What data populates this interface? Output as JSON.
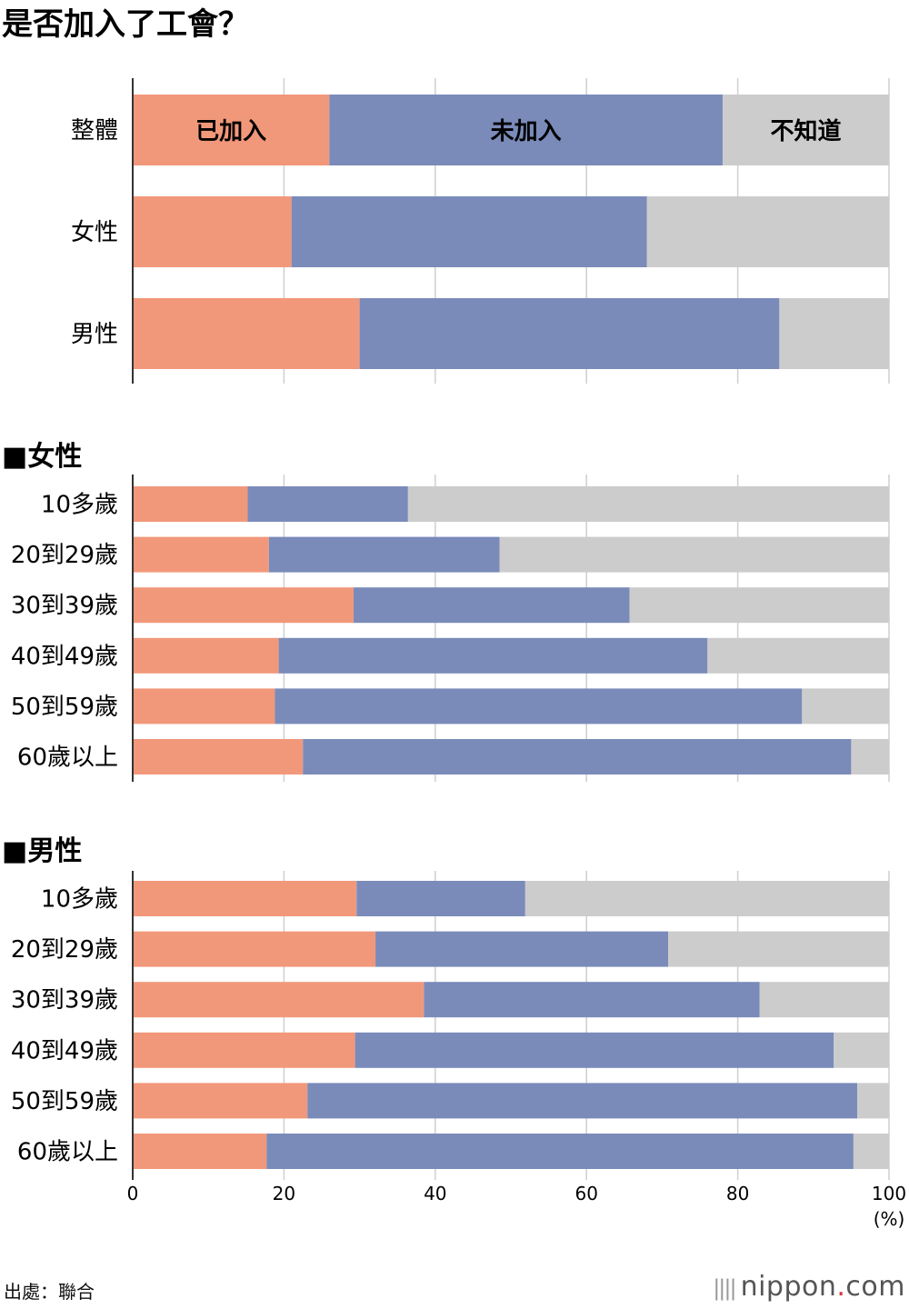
{
  "title": "是否加入了工會？",
  "source": "出處：聯合",
  "logo": {
    "brand": "nippon",
    "dot": ".",
    "tld": "com"
  },
  "colors": {
    "joined": "#f2987a",
    "not_joined": "#7a8bba",
    "unknown": "#cccccc",
    "grid": "#cfcfcf",
    "axis": "#333333"
  },
  "chart_data": {
    "type": "bar",
    "orientation": "horizontal",
    "stacked": true,
    "xlim": [
      0,
      100
    ],
    "x_ticks": [
      "0",
      "20",
      "40",
      "60",
      "80",
      "100"
    ],
    "x_unit": "(%)",
    "series_names": [
      "已加入",
      "未加入",
      "不知道"
    ],
    "groups": [
      {
        "name": "",
        "categories": [
          "整體",
          "女性",
          "男性"
        ],
        "series": [
          {
            "name": "已加入",
            "values": [
              26,
              21,
              30
            ]
          },
          {
            "name": "未加入",
            "values": [
              52,
              47,
              55.5
            ]
          },
          {
            "name": "不知道",
            "values": [
              22,
              32,
              14.5
            ]
          }
        ]
      },
      {
        "name": "■女性",
        "categories": [
          "10多歲",
          "20到29歲",
          "30到39歲",
          "40到49歲",
          "50到59歲",
          "60歲以上"
        ],
        "series": [
          {
            "name": "已加入",
            "values": [
              15.2,
              18,
              29.2,
              19.3,
              18.8,
              22.5
            ]
          },
          {
            "name": "未加入",
            "values": [
              21.2,
              30.5,
              36.5,
              56.7,
              69.7,
              72.5
            ]
          },
          {
            "name": "不知道",
            "values": [
              63.6,
              51.5,
              34.3,
              24,
              11.5,
              5
            ]
          }
        ]
      },
      {
        "name": "■男性",
        "categories": [
          "10多歲",
          "20到29歲",
          "30到39歲",
          "40到49歲",
          "50到59歲",
          "60歲以上"
        ],
        "series": [
          {
            "name": "已加入",
            "values": [
              29.6,
              32.1,
              38.5,
              29.4,
              23.1,
              17.7
            ]
          },
          {
            "name": "未加入",
            "values": [
              22.3,
              38.7,
              44.4,
              63.3,
              72.7,
              77.6
            ]
          },
          {
            "name": "不知道",
            "values": [
              48.1,
              29.2,
              17.1,
              7.3,
              4.2,
              4.7
            ]
          }
        ]
      }
    ]
  }
}
